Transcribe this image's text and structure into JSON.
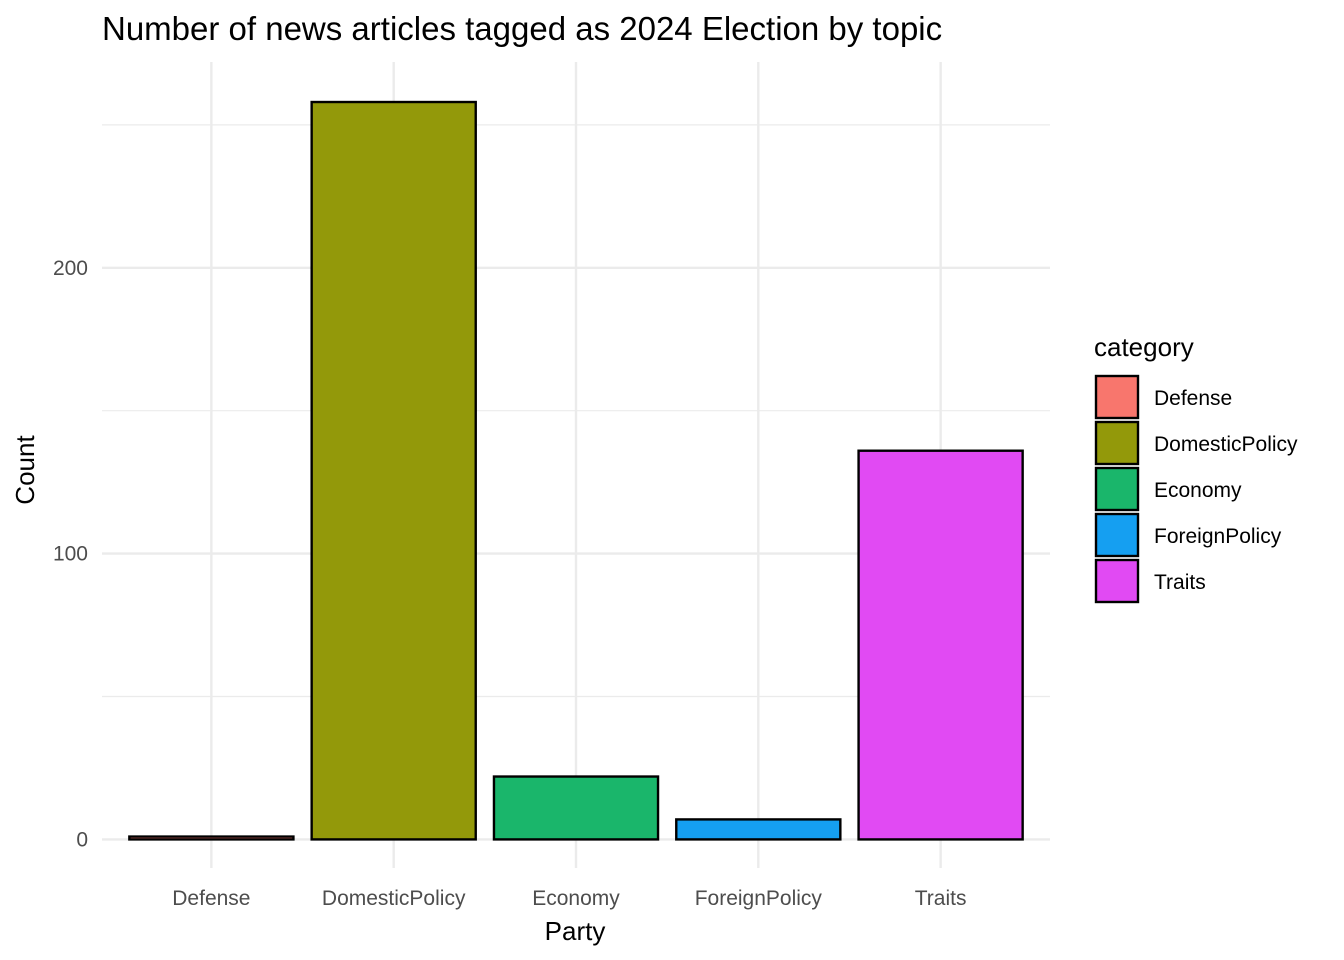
{
  "chart_data": {
    "type": "bar",
    "title": "Number of news articles tagged as 2024 Election by topic",
    "xlabel": "Party",
    "ylabel": "Count",
    "categories": [
      "Defense",
      "DomesticPolicy",
      "Economy",
      "ForeignPolicy",
      "Traits"
    ],
    "values": [
      1,
      258,
      22,
      7,
      136
    ],
    "ylim": [
      -10,
      272
    ],
    "yticks": [
      0,
      100,
      200
    ],
    "yticks_minor": [
      50,
      150,
      250
    ],
    "grid": true,
    "legend": {
      "title": "category",
      "placement": "right",
      "entries": [
        "Defense",
        "DomesticPolicy",
        "Economy",
        "ForeignPolicy",
        "Traits"
      ]
    },
    "colors": [
      "#F8766D",
      "#93990A",
      "#1AB66B",
      "#159FF1",
      "#E14AF3"
    ],
    "bar_outline": "#000000"
  }
}
